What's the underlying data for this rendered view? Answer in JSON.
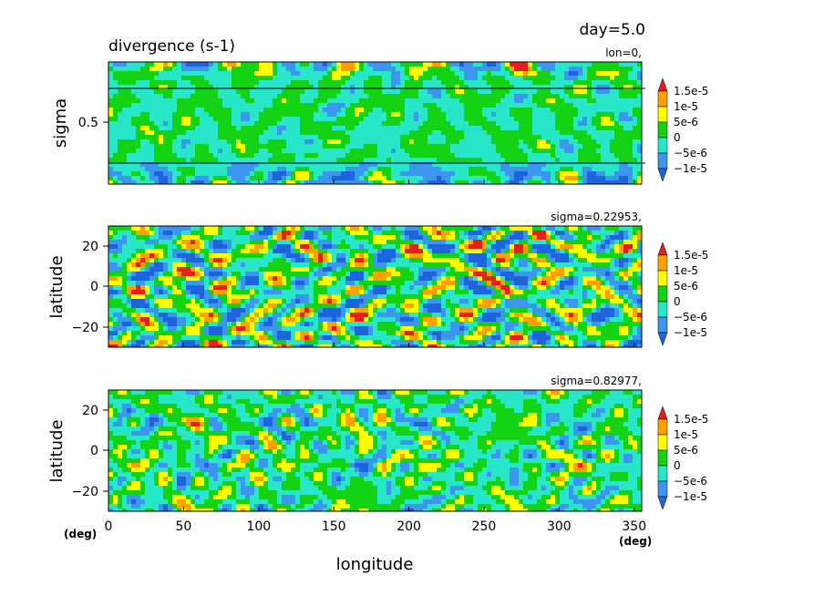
{
  "header": {
    "title": "divergence (s-1)",
    "day_label": "day=5.0"
  },
  "colors": {
    "levels": [
      "#1e64dc",
      "#3c96f0",
      "#28e6c8",
      "#14d214",
      "#ffff00",
      "#ffa000",
      "#e61e1e"
    ],
    "colorbar_labels": [
      "1.5e-5",
      "1e-5",
      "5e-6",
      "0",
      "−5e-6",
      "−1e-5"
    ]
  },
  "chart_data": [
    {
      "type": "heatmap",
      "title": "divergence (s-1)",
      "section_label": "lon=0,",
      "xlabel": "",
      "ylabel": "sigma",
      "xlim": [
        0,
        355
      ],
      "ylim": [
        1.0,
        0.0
      ],
      "y_ticks": [
        0.5
      ],
      "y_tick_labels": [
        "0.5"
      ],
      "reference_lines_sigma": [
        0.22953,
        0.82977
      ],
      "levels": [
        -1e-05,
        -5e-06,
        0,
        5e-06,
        1e-05,
        1.5e-05
      ]
    },
    {
      "type": "heatmap",
      "section_label": "sigma=0.22953,",
      "xlabel": "",
      "ylabel": "latitude",
      "xlim": [
        0,
        355
      ],
      "ylim": [
        -30,
        30
      ],
      "y_ticks": [
        20,
        0,
        -20
      ],
      "y_tick_labels": [
        "20",
        "0",
        "−20"
      ],
      "levels": [
        -1e-05,
        -5e-06,
        0,
        5e-06,
        1e-05,
        1.5e-05
      ]
    },
    {
      "type": "heatmap",
      "section_label": "sigma=0.82977,",
      "xlabel": "longitude",
      "ylabel": "latitude",
      "xlim": [
        0,
        355
      ],
      "ylim": [
        -30,
        30
      ],
      "x_ticks": [
        0,
        50,
        100,
        150,
        200,
        250,
        300,
        350
      ],
      "x_tick_labels": [
        "0",
        "50",
        "100",
        "150",
        "200",
        "250",
        "300",
        "350"
      ],
      "x_unit_label": "(deg)",
      "y_ticks": [
        20,
        0,
        -20
      ],
      "y_tick_labels": [
        "20",
        "0",
        "−20"
      ],
      "levels": [
        -1e-05,
        -5e-06,
        0,
        5e-06,
        1e-05,
        1.5e-05
      ]
    }
  ]
}
